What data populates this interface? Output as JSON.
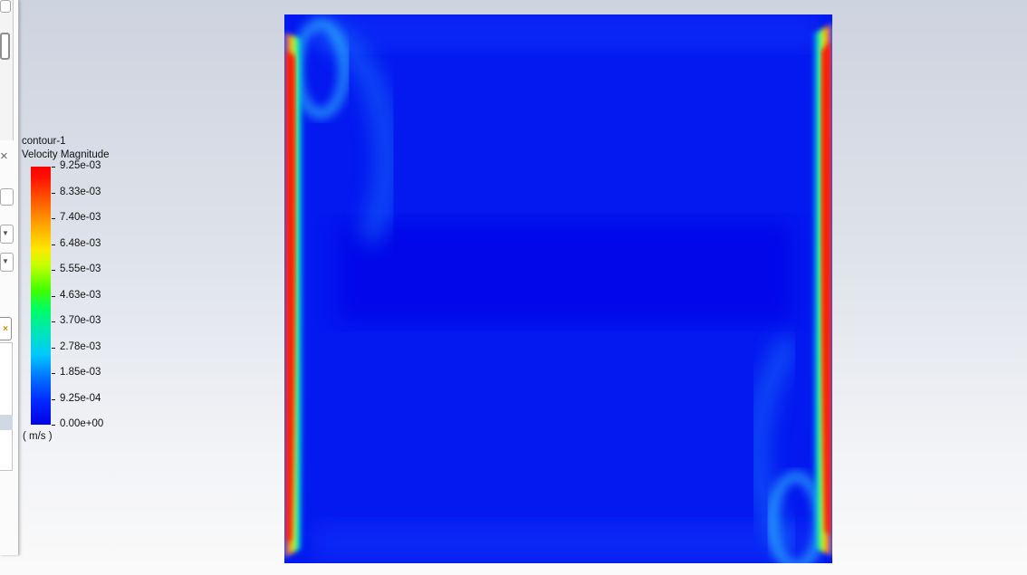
{
  "legend": {
    "title": "contour-1",
    "quantity": "Velocity Magnitude",
    "units": "( m/s )",
    "colormap": "rainbow (blue to red)",
    "min_color": "#0000e8",
    "max_color": "#ff0000",
    "ticks": [
      "9.25e-03",
      "8.33e-03",
      "7.40e-03",
      "6.48e-03",
      "5.55e-03",
      "4.63e-03",
      "3.70e-03",
      "2.78e-03",
      "1.85e-03",
      "9.25e-04",
      "0.00e+00"
    ]
  },
  "plot": {
    "background_color": "#0418f0",
    "field": "velocity magnitude contour",
    "max_regions": [
      "left wall (near-wall jet, red)",
      "right wall (near-wall jet, red)"
    ]
  },
  "left_panel": {
    "close_glyph": "×",
    "dropdown_glyph": "▼",
    "delete_glyph": "×"
  }
}
